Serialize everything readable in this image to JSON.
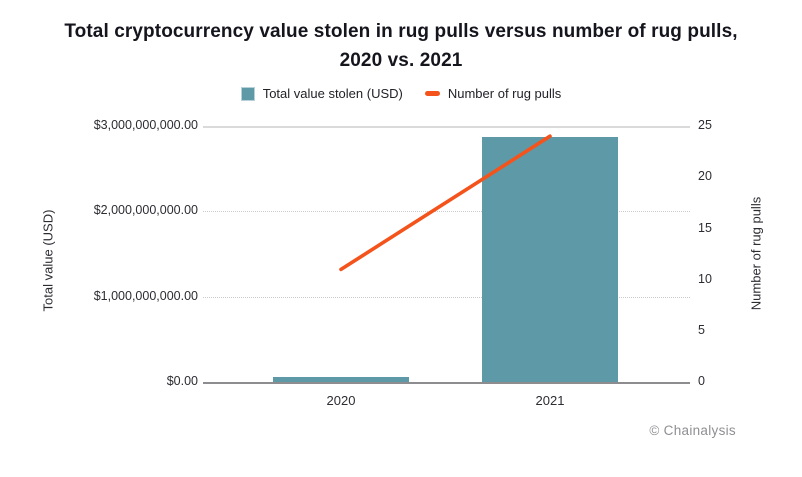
{
  "page": {
    "attribution": "© Chainalysis"
  },
  "chart_data": {
    "type": "combo",
    "title": "Total cryptocurrency value stolen in rug pulls versus number of rug pulls, 2020 vs. 2021",
    "categories": [
      "2020",
      "2021"
    ],
    "series": [
      {
        "name": "Total value stolen (USD)",
        "type": "bar",
        "axis": "left",
        "color": "#5d99a6",
        "values": [
          60000000,
          2870000000
        ]
      },
      {
        "name": "Number of rug pulls",
        "type": "line",
        "axis": "right",
        "color": "#f4541c",
        "values": [
          11,
          24
        ]
      }
    ],
    "left_axis": {
      "label": "Total value (USD)",
      "range": [
        0,
        3000000000
      ],
      "ticks": [
        "$0.00",
        "$1,000,000,000.00",
        "$2,000,000,000.00",
        "$3,000,000,000.00"
      ]
    },
    "right_axis": {
      "label": "Number of rug pulls",
      "range": [
        0,
        25
      ],
      "ticks": [
        "0",
        "5",
        "10",
        "15",
        "20",
        "25"
      ]
    },
    "legend_position": "top",
    "grid": "horizontal",
    "colors": {
      "bar": "#5d99a6",
      "line": "#f4541c",
      "gridline": "#dadada",
      "axis_line": "#8d8d8f",
      "title_text": "#15151e",
      "tick_text": "#2c2c33",
      "attribution_text": "#8f8f93"
    }
  }
}
